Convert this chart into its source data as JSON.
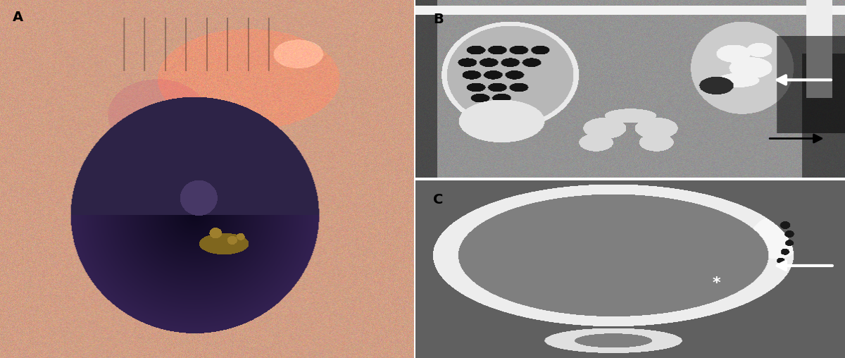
{
  "fig_width": 12.0,
  "fig_height": 5.08,
  "dpi": 100,
  "bg_color": "#ffffff",
  "panel_A": {
    "label": "A",
    "label_color": "#000000",
    "label_fontsize": 14,
    "label_fontweight": "bold"
  },
  "panel_B": {
    "label": "B",
    "label_color": "#000000",
    "label_fontsize": 14,
    "label_fontweight": "bold"
  },
  "panel_C": {
    "label": "C",
    "label_color": "#000000",
    "label_fontsize": 14,
    "label_fontweight": "bold"
  }
}
